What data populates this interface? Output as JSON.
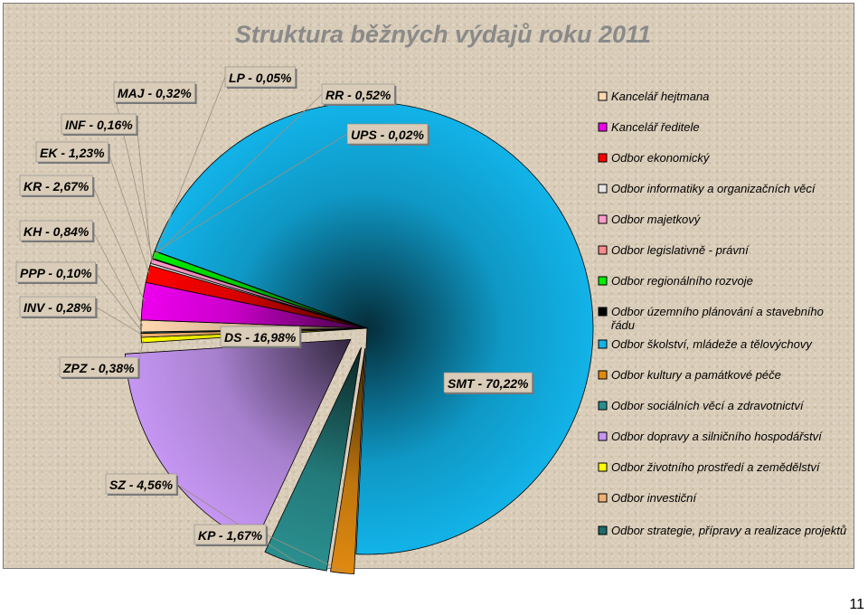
{
  "chart_data": {
    "type": "pie",
    "title": "Struktura běžných výdajů roku 2011",
    "slices": [
      {
        "code": "SMT",
        "label": "SMT - 70,22%",
        "value": 70.22,
        "color": "#12b3e8",
        "legend": "Odbor školství, mládeže a tělovýchovy"
      },
      {
        "code": "KP",
        "label": "KP - 1,67%",
        "value": 1.67,
        "color": "#e08a10",
        "legend": "Odbor kultury a památkové péče"
      },
      {
        "code": "SZ",
        "label": "SZ - 4,56%",
        "value": 4.56,
        "color": "#2a8f8f",
        "legend": "Odbor sociálních věcí a zdravotnictví"
      },
      {
        "code": "DS",
        "label": "DS - 16,98%",
        "value": 16.98,
        "color": "#c596f2",
        "legend": "Odbor dopravy a silničního hospodářství"
      },
      {
        "code": "ZPZ",
        "label": "ZPZ - 0,38%",
        "value": 0.38,
        "color": "#ffff00",
        "legend": "Odbor životního prostředí a zemědělství"
      },
      {
        "code": "INV",
        "label": "INV - 0,28%",
        "value": 0.28,
        "color": "#f0b070",
        "legend": "Odbor investiční"
      },
      {
        "code": "PPP",
        "label": "PPP - 0,10%",
        "value": 0.1,
        "color": "#1d6a6a",
        "legend": "Odbor strategie, přípravy a realizace projektů"
      },
      {
        "code": "KH",
        "label": "KH - 0,84%",
        "value": 0.84,
        "color": "#ffd8b0",
        "legend": "Kancelář hejtmana"
      },
      {
        "code": "KR",
        "label": "KR - 2,67%",
        "value": 2.67,
        "color": "#ee00ee",
        "legend": "Kancelář ředitele"
      },
      {
        "code": "EK",
        "label": "EK - 1,23%",
        "value": 1.23,
        "color": "#ff0000",
        "legend": "Odbor ekonomický"
      },
      {
        "code": "INF",
        "label": "INF - 0,16%",
        "value": 0.16,
        "color": "#e6e6e6",
        "legend": "Odbor informatiky a organizačních věcí"
      },
      {
        "code": "MAJ",
        "label": "MAJ - 0,32%",
        "value": 0.32,
        "color": "#ff9acb",
        "legend": "Odbor majetkový"
      },
      {
        "code": "LP",
        "label": "LP - 0,05%",
        "value": 0.05,
        "color": "#ff8a8a",
        "legend": "Odbor legislativně - právní"
      },
      {
        "code": "RR",
        "label": "RR - 0,52%",
        "value": 0.52,
        "color": "#00ee00",
        "legend": "Odbor regionálního rozvoje"
      },
      {
        "code": "UPS",
        "label": "UPS - 0,02%",
        "value": 0.02,
        "color": "#000000",
        "legend": "Odbor územního plánování a stavebního řádu"
      }
    ],
    "legend_order": [
      {
        "text": "Kancelář hejtmana",
        "color": "#ffd8b0"
      },
      {
        "text": "Kancelář ředitele",
        "color": "#ee00ee"
      },
      {
        "text": "Odbor ekonomický",
        "color": "#ff0000"
      },
      {
        "text": "Odbor informatiky a organizačních věcí",
        "color": "#e6e6e6"
      },
      {
        "text": "Odbor majetkový",
        "color": "#ff9acb"
      },
      {
        "text": "Odbor legislativně - právní",
        "color": "#ff8a8a"
      },
      {
        "text": "Odbor regionálního rozvoje",
        "color": "#00ee00"
      },
      {
        "text": "Odbor územního plánování a stavebního řádu",
        "color": "#000000"
      },
      {
        "text": "Odbor školství, mládeže a tělovýchovy",
        "color": "#12b3e8"
      },
      {
        "text": "Odbor kultury a památkové péče",
        "color": "#e08a10"
      },
      {
        "text": "Odbor sociálních věcí a zdravotnictví",
        "color": "#2a8f8f"
      },
      {
        "text": "Odbor dopravy a silničního hospodářství",
        "color": "#c596f2"
      },
      {
        "text": "Odbor životního prostředí a zemědělství",
        "color": "#ffff00"
      },
      {
        "text": "Odbor investiční",
        "color": "#f0b070"
      },
      {
        "text": "Odbor strategie, přípravy a realizace projektů",
        "color": "#1d6a6a"
      }
    ],
    "legend_placement": "right"
  },
  "page_number": "11"
}
